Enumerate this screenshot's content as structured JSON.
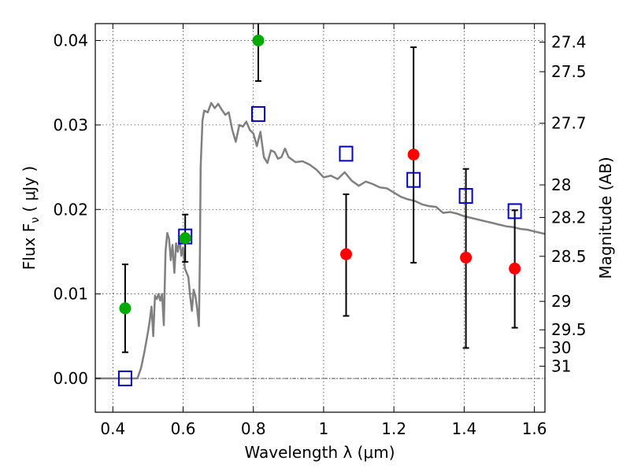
{
  "chart_data": {
    "type": "scatter",
    "xlabel": "Wavelength  λ (μm)",
    "ylabel": "Flux  F",
    "ylabel_sub": "ν",
    "ylabel_unit": "  ( μJy )",
    "y2label": "Magnitude (AB)",
    "xlim": [
      0.35,
      1.63
    ],
    "ylim": [
      -0.004,
      0.042
    ],
    "grid": true,
    "x_ticks": [
      {
        "value": 0.4,
        "label": "0.4"
      },
      {
        "value": 0.6,
        "label": "0.6"
      },
      {
        "value": 0.8,
        "label": "0.8"
      },
      {
        "value": 1.0,
        "label": "1"
      },
      {
        "value": 1.2,
        "label": "1.2"
      },
      {
        "value": 1.4,
        "label": "1.4"
      },
      {
        "value": 1.6,
        "label": "1.6"
      }
    ],
    "y_ticks": [
      {
        "value": 0.0,
        "label": "0.00"
      },
      {
        "value": 0.01,
        "label": "0.01"
      },
      {
        "value": 0.02,
        "label": "0.02"
      },
      {
        "value": 0.03,
        "label": "0.03"
      },
      {
        "value": 0.04,
        "label": "0.04"
      }
    ],
    "magnitude_ticks": [
      {
        "value": 27.4,
        "label": "27.4"
      },
      {
        "value": 27.5,
        "label": "27.5"
      },
      {
        "value": 27.7,
        "label": "27.7"
      },
      {
        "value": 28.0,
        "label": "28"
      },
      {
        "value": 28.2,
        "label": "28.2"
      },
      {
        "value": 28.5,
        "label": "28.5"
      },
      {
        "value": 29.0,
        "label": "29"
      },
      {
        "value": 29.5,
        "label": "29.5"
      },
      {
        "value": 30.0,
        "label": "30"
      },
      {
        "value": 31.0,
        "label": "31"
      }
    ],
    "colors": {
      "green": "#00aa00",
      "red": "#ff0000",
      "model_box": "#0000cc",
      "sed": "#808080",
      "errorbar": "#000000"
    },
    "detections_green": [
      {
        "x": 0.435,
        "y": 0.0083,
        "yerr_low": 0.0031,
        "yerr_high": 0.0135
      },
      {
        "x": 0.606,
        "y": 0.0166,
        "yerr_low": 0.0138,
        "yerr_high": 0.0194
      },
      {
        "x": 0.814,
        "y": 0.04,
        "yerr_low": 0.0352,
        "yerr_high": 0.042
      }
    ],
    "detections_red": [
      {
        "x": 1.064,
        "y": 0.0147,
        "yerr_low": 0.0074,
        "yerr_high": 0.0218
      },
      {
        "x": 1.256,
        "y": 0.0265,
        "yerr_low": 0.0137,
        "yerr_high": 0.0392
      },
      {
        "x": 1.405,
        "y": 0.0143,
        "yerr_low": 0.0036,
        "yerr_high": 0.0248
      },
      {
        "x": 1.544,
        "y": 0.013,
        "yerr_low": 0.006,
        "yerr_high": 0.0199
      }
    ],
    "model_photometry": [
      {
        "x": 0.435,
        "y": 0.0
      },
      {
        "x": 0.606,
        "y": 0.0168
      },
      {
        "x": 0.814,
        "y": 0.0313
      },
      {
        "x": 1.064,
        "y": 0.0266
      },
      {
        "x": 1.256,
        "y": 0.0235
      },
      {
        "x": 1.405,
        "y": 0.0216
      },
      {
        "x": 1.544,
        "y": 0.0198
      }
    ],
    "sed_model": {
      "x": [
        0.35,
        0.47,
        0.48,
        0.49,
        0.5,
        0.505,
        0.51,
        0.515,
        0.52,
        0.525,
        0.53,
        0.535,
        0.54,
        0.545,
        0.55,
        0.555,
        0.56,
        0.565,
        0.57,
        0.575,
        0.58,
        0.585,
        0.59,
        0.595,
        0.6,
        0.605,
        0.61,
        0.615,
        0.62,
        0.625,
        0.63,
        0.635,
        0.64,
        0.645,
        0.648,
        0.65,
        0.655,
        0.66,
        0.67,
        0.68,
        0.69,
        0.7,
        0.71,
        0.72,
        0.73,
        0.74,
        0.75,
        0.76,
        0.77,
        0.78,
        0.79,
        0.8,
        0.81,
        0.82,
        0.83,
        0.84,
        0.85,
        0.86,
        0.87,
        0.88,
        0.89,
        0.9,
        0.92,
        0.94,
        0.96,
        0.98,
        1.0,
        1.02,
        1.04,
        1.06,
        1.08,
        1.1,
        1.12,
        1.14,
        1.16,
        1.18,
        1.2,
        1.22,
        1.24,
        1.26,
        1.28,
        1.3,
        1.32,
        1.34,
        1.36,
        1.38,
        1.4,
        1.42,
        1.44,
        1.46,
        1.48,
        1.5,
        1.52,
        1.54,
        1.56,
        1.58,
        1.6,
        1.63
      ],
      "y": [
        0.0,
        0.0,
        0.0012,
        0.0032,
        0.0055,
        0.0068,
        0.0085,
        0.005,
        0.0098,
        0.0094,
        0.01,
        0.0092,
        0.01,
        0.0063,
        0.015,
        0.0172,
        0.0165,
        0.014,
        0.0158,
        0.0125,
        0.016,
        0.015,
        0.0165,
        0.0145,
        0.0155,
        0.013,
        0.0125,
        0.012,
        0.0098,
        0.008,
        0.0105,
        0.0098,
        0.0082,
        0.0062,
        0.015,
        0.025,
        0.0305,
        0.0317,
        0.0315,
        0.0326,
        0.032,
        0.0325,
        0.0318,
        0.0312,
        0.0315,
        0.0294,
        0.028,
        0.03,
        0.0298,
        0.0304,
        0.0294,
        0.029,
        0.0275,
        0.0292,
        0.0262,
        0.0255,
        0.027,
        0.0268,
        0.026,
        0.0262,
        0.0272,
        0.0262,
        0.0256,
        0.0257,
        0.0253,
        0.0247,
        0.0238,
        0.024,
        0.0236,
        0.0244,
        0.0234,
        0.0228,
        0.0233,
        0.023,
        0.0226,
        0.0225,
        0.022,
        0.0215,
        0.0212,
        0.021,
        0.0206,
        0.0204,
        0.0203,
        0.0196,
        0.0197,
        0.0195,
        0.0192,
        0.019,
        0.0188,
        0.0186,
        0.0184,
        0.0182,
        0.018,
        0.0179,
        0.0177,
        0.0176,
        0.0174,
        0.0171
      ]
    }
  }
}
